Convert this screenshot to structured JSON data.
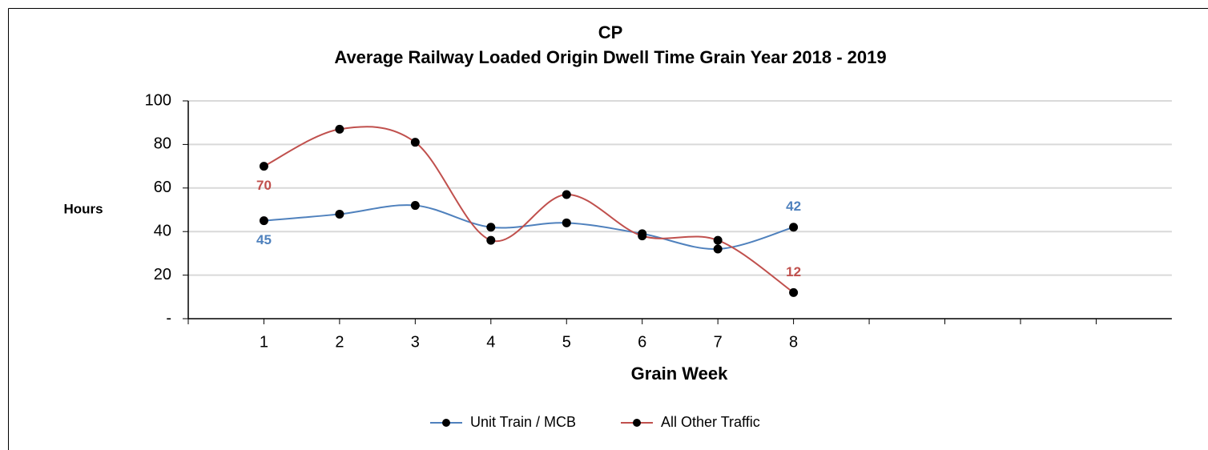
{
  "chart_data": {
    "type": "line",
    "title": "CP",
    "subtitle": "Average Railway Loaded Origin Dwell Time Grain Year 2018 - 2019",
    "y_label": "Hours",
    "x_label": "Grain Week",
    "categories": [
      "1",
      "2",
      "3",
      "4",
      "5",
      "6",
      "7",
      "8",
      null,
      null,
      null,
      null
    ],
    "series": [
      {
        "name": "Unit Train / MCB",
        "color": "#4f81bd",
        "values": [
          45,
          48,
          52,
          42,
          44,
          39,
          32,
          42,
          null,
          null,
          null,
          null
        ]
      },
      {
        "name": "All Other Traffic",
        "color": "#c0504d",
        "values": [
          70,
          87,
          81,
          36,
          57,
          38,
          36,
          12,
          null,
          null,
          null,
          null
        ]
      }
    ],
    "ylim": [
      0,
      100
    ],
    "yticks": [
      {
        "value": 0,
        "label": "-"
      },
      20,
      40,
      60,
      80,
      100
    ],
    "grid": true,
    "legend": "bottom"
  }
}
